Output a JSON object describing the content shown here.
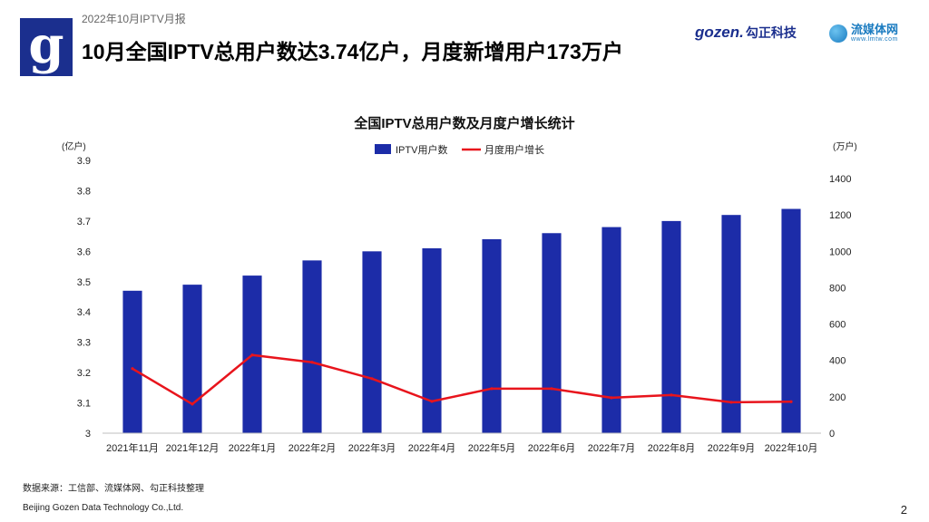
{
  "header": {
    "report_label": "2022年10月IPTV月报",
    "headline": "10月全国IPTV总用户数达3.74亿户，月度新增用户173万户",
    "logo_letter": "g",
    "brand_gozen": "gozen.",
    "brand_gozen_cn": "勾正科技",
    "brand_lmtw": "流媒体网",
    "brand_lmtw_url": "www.lmtw.com"
  },
  "footer": {
    "source": "数据来源：工信部、流媒体网、勾正科技整理",
    "company": "Beijing Gozen Data Technology Co.,Ltd.",
    "page": "2"
  },
  "colors": {
    "bar": "#1c2ca8",
    "line": "#e8141c",
    "brand": "#1b2f8e"
  },
  "chart_data": {
    "type": "bar",
    "title": "全国IPTV总用户数及月度户增长统计",
    "categories": [
      "2021年11月",
      "2021年12月",
      "2022年1月",
      "2022年2月",
      "2022年3月",
      "2022年4月",
      "2022年5月",
      "2022年6月",
      "2022年7月",
      "2022年8月",
      "2022年9月",
      "2022年10月"
    ],
    "y_left_unit": "(亿户)",
    "y_right_unit": "(万户)",
    "ylim_left": [
      3,
      3.9
    ],
    "yticks_left": [
      "3",
      "3.1",
      "3.2",
      "3.3",
      "3.4",
      "3.5",
      "3.6",
      "3.7",
      "3.8",
      "3.9"
    ],
    "ylim_right": [
      0,
      1500
    ],
    "yticks_right": [
      "0",
      "200",
      "400",
      "600",
      "800",
      "1000",
      "1200",
      "1400"
    ],
    "legend_position": "top",
    "grid": false,
    "series": [
      {
        "name": "IPTV用户数",
        "type": "bar",
        "axis": "left",
        "values": [
          3.47,
          3.49,
          3.52,
          3.57,
          3.6,
          3.61,
          3.64,
          3.66,
          3.68,
          3.7,
          3.72,
          3.74
        ]
      },
      {
        "name": "月度用户增长",
        "type": "line",
        "axis": "right",
        "values": [
          355,
          160,
          430,
          390,
          300,
          175,
          245,
          245,
          195,
          210,
          170,
          173
        ]
      }
    ]
  }
}
